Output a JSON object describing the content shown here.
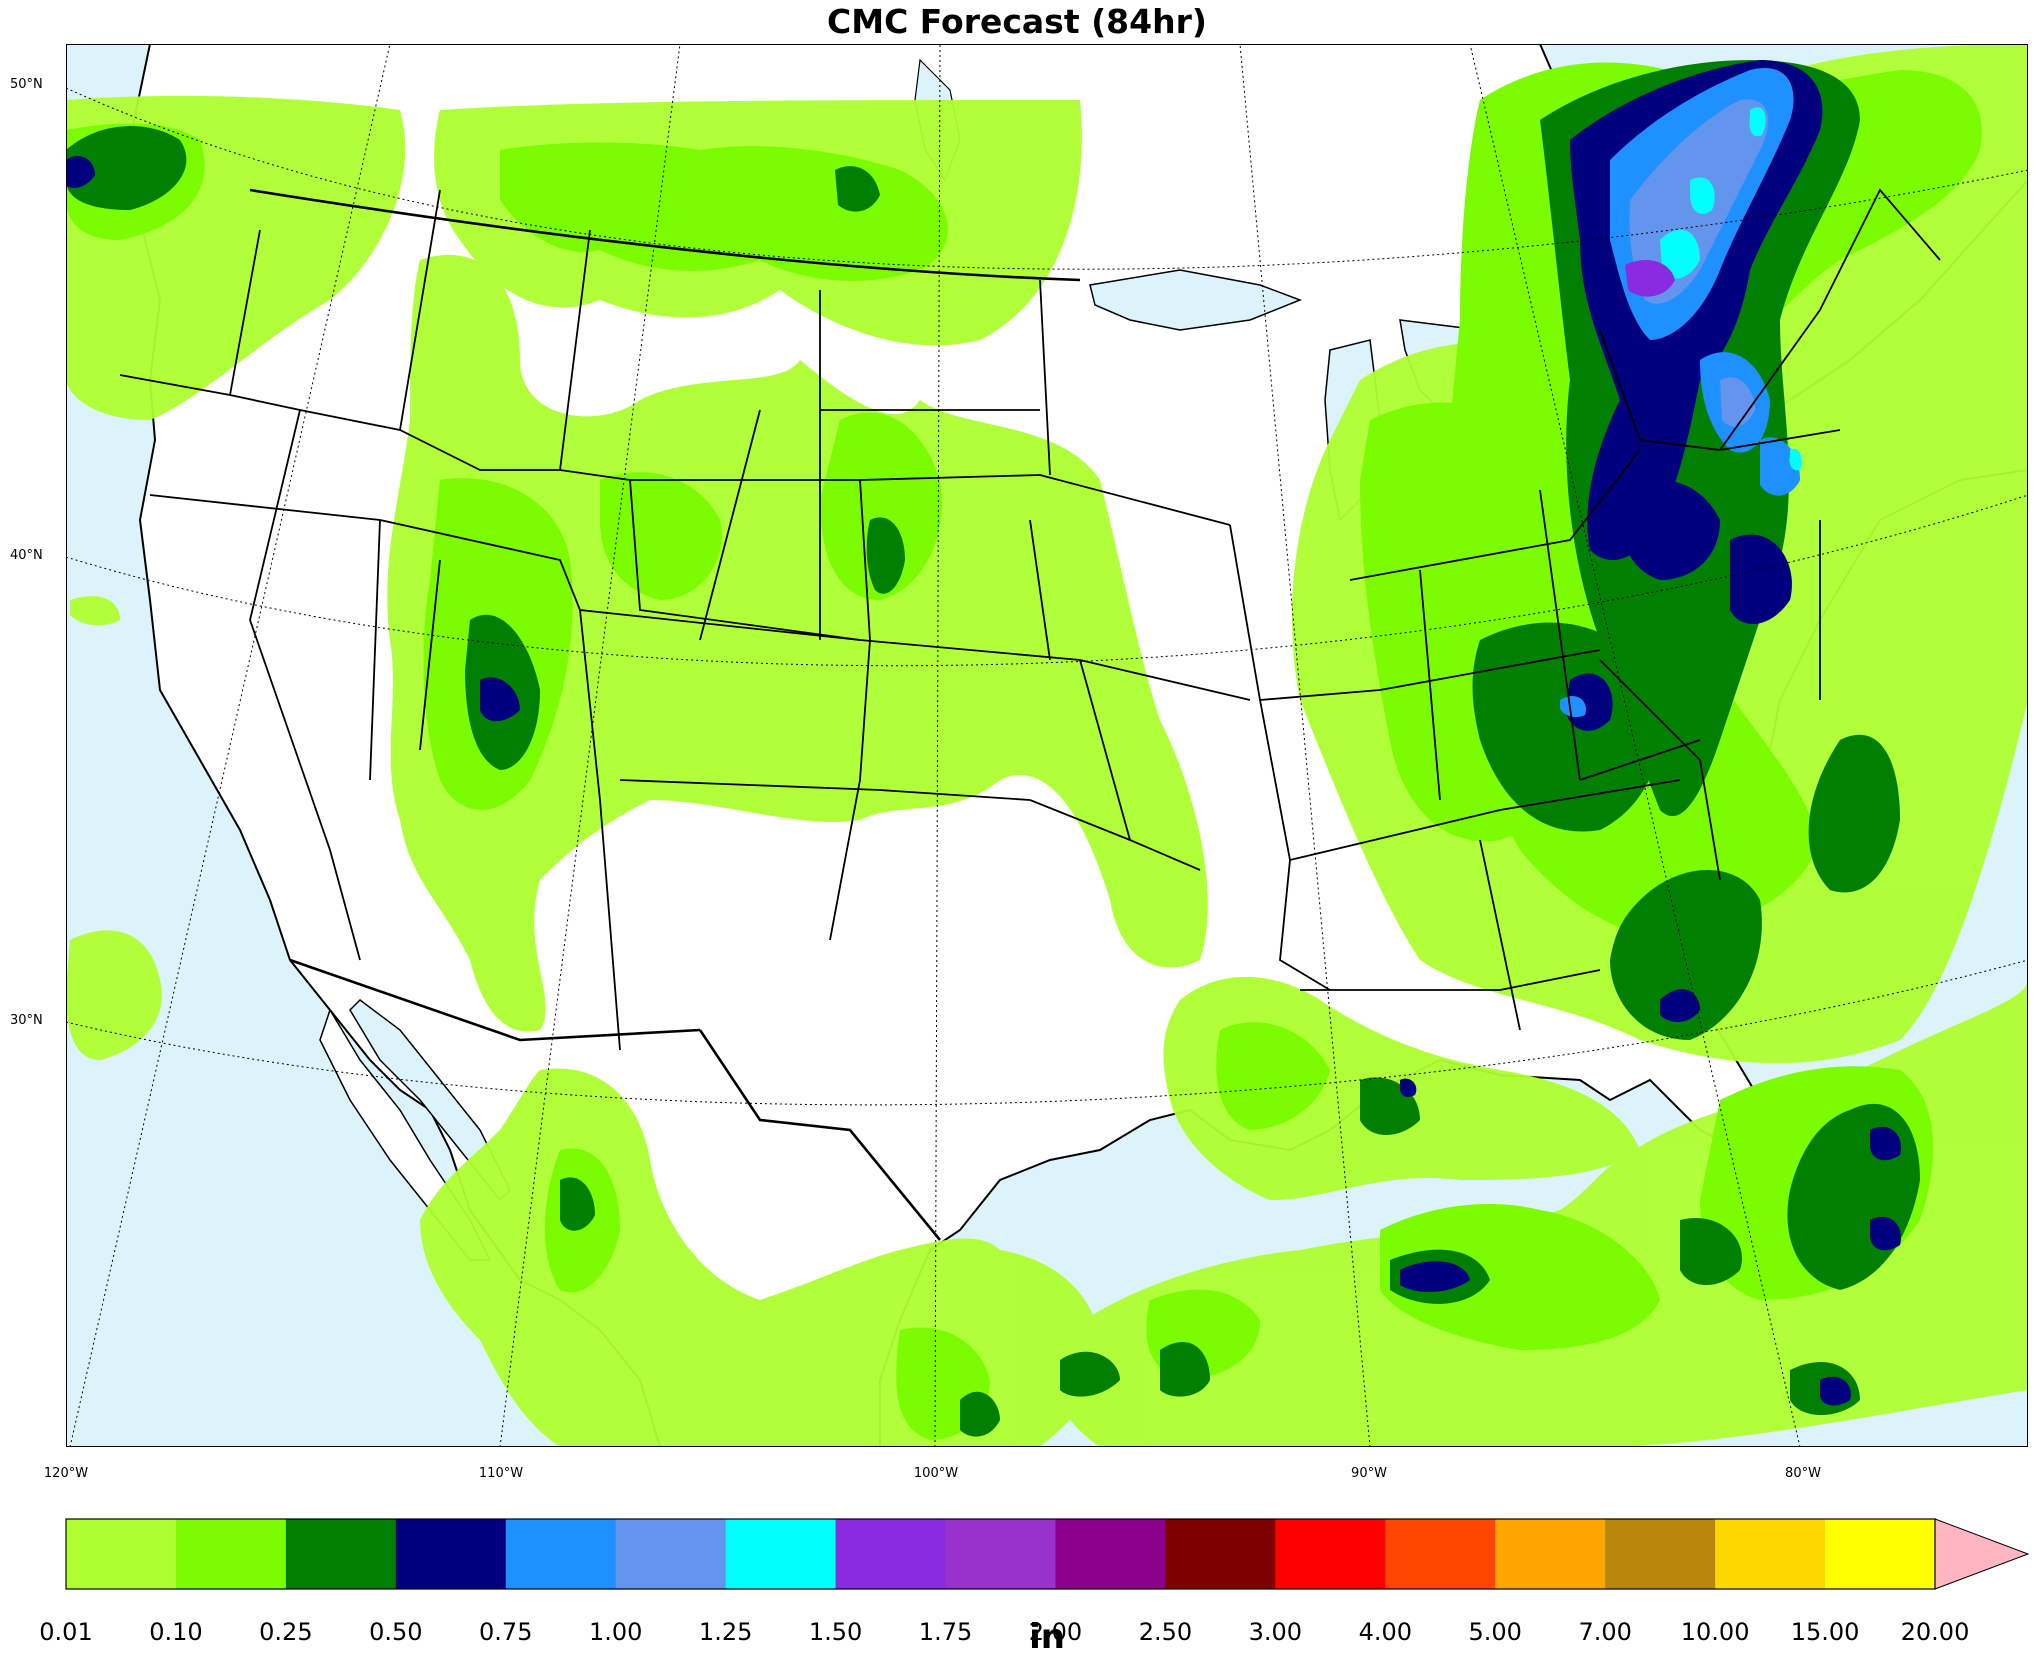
{
  "title": "CMC Forecast (84hr)",
  "map": {
    "type": "precipitation-forecast-map",
    "lat_labels": [
      "50°N",
      "40°N",
      "30°N"
    ],
    "lon_labels": [
      "120°W",
      "110°W",
      "100°W",
      "90°W",
      "80°W"
    ],
    "ocean_color": "#ddf3fb",
    "land_color": "#ffffff"
  },
  "colorbar": {
    "unit": "in",
    "ticks": [
      "0.01",
      "0.10",
      "0.25",
      "0.50",
      "0.75",
      "1.00",
      "1.25",
      "1.50",
      "1.75",
      "2.00",
      "2.50",
      "3.00",
      "4.00",
      "5.00",
      "7.00",
      "10.00",
      "15.00",
      "20.00"
    ],
    "colors": [
      "#adff2f",
      "#7cfc00",
      "#007f00",
      "#00007f",
      "#1e90ff",
      "#6495ed",
      "#00ffff",
      "#8a2be2",
      "#9932cc",
      "#8b008b",
      "#7f0000",
      "#ff0000",
      "#ff4500",
      "#ffa500",
      "#b8860b",
      "#ffd700",
      "#ffff00"
    ],
    "extend_color": "#ffb6c1"
  }
}
